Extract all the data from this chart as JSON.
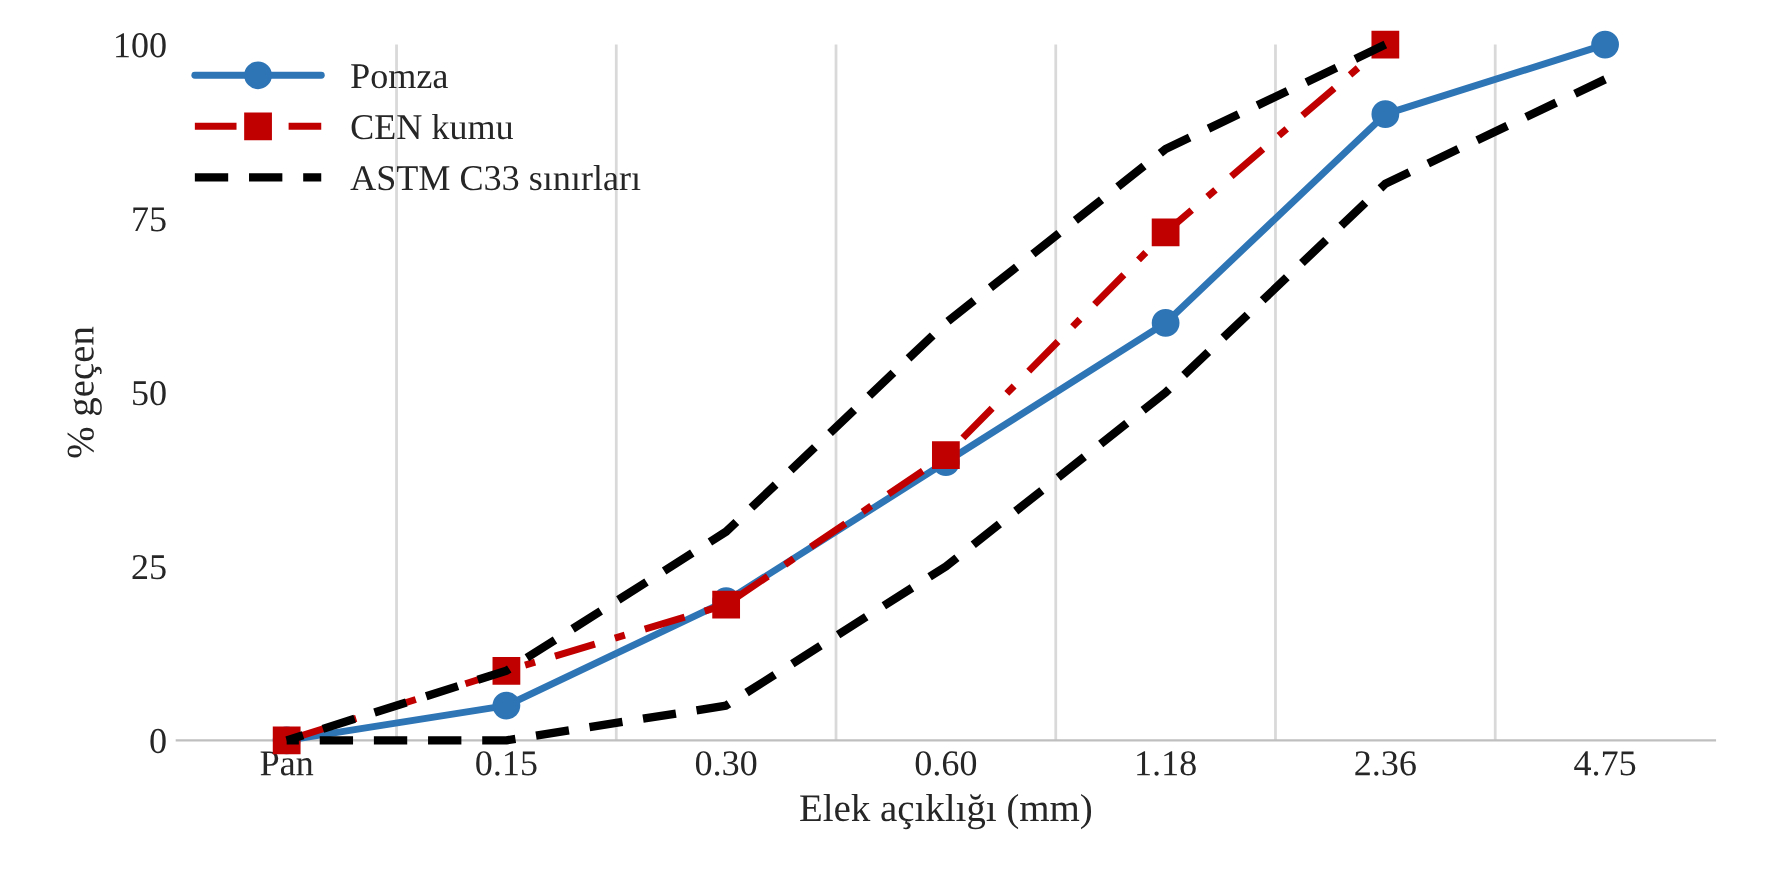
{
  "chart_data": {
    "type": "line",
    "xlabel": "Elek açıklığı (mm)",
    "ylabel": "% geçen",
    "categories": [
      "Pan",
      "0.15",
      "0.30",
      "0.60",
      "1.18",
      "2.36",
      "4.75"
    ],
    "series": [
      {
        "name": "Pomza",
        "color": "#2e75b6",
        "marker": "circle",
        "line_style": "solid",
        "values": [
          0,
          5,
          20,
          40,
          60,
          90,
          100
        ]
      },
      {
        "name": "CEN kumu",
        "color": "#c00000",
        "marker": "square",
        "line_style": "dashdot",
        "values": [
          0,
          10,
          19.5,
          41,
          73,
          100,
          null
        ]
      },
      {
        "name": "ASTM C33 sınırları",
        "color": "#000000",
        "marker": "none",
        "line_style": "dashed",
        "values": [
          0,
          10,
          30,
          60,
          85,
          100,
          null
        ]
      },
      {
        "color": "#000000",
        "marker": "none",
        "line_style": "dashed",
        "values": [
          0,
          0,
          5,
          25,
          50,
          80,
          95
        ]
      }
    ],
    "ylim": [
      0,
      100
    ],
    "yticks": [
      0,
      25,
      50,
      75,
      100
    ],
    "grid": "x",
    "legend": "top left"
  }
}
